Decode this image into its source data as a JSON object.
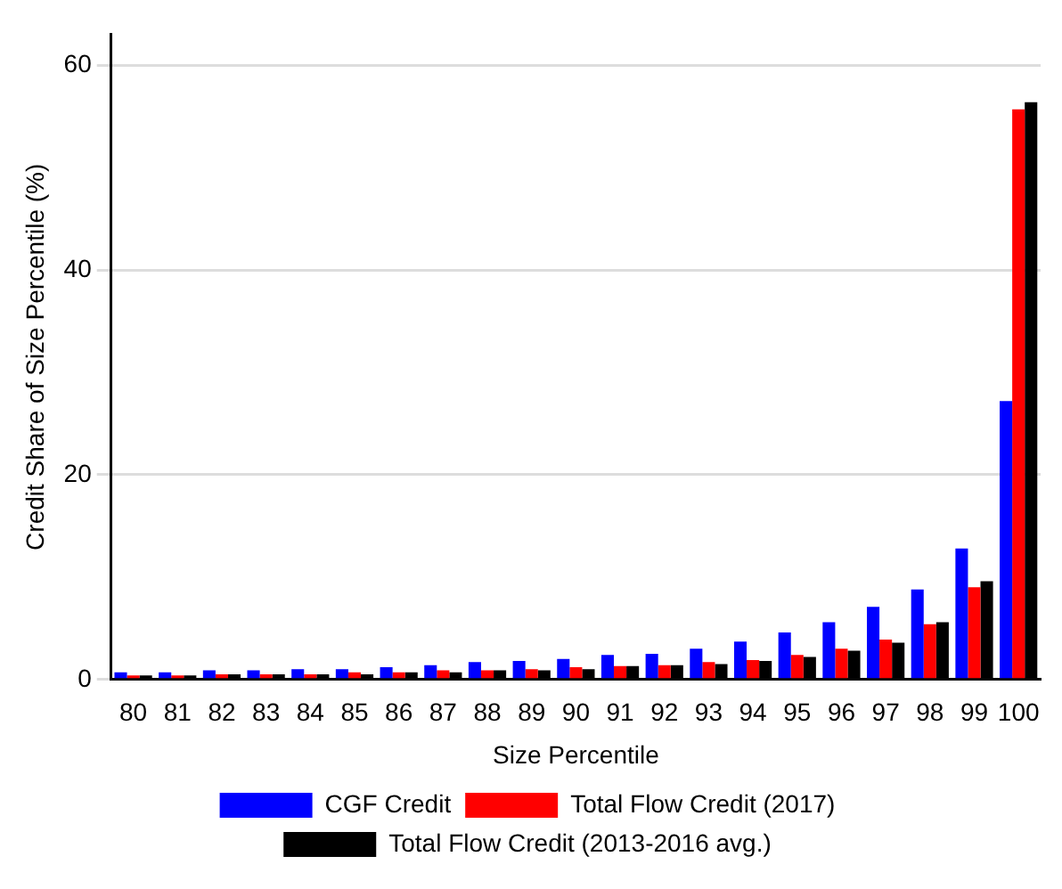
{
  "chart_data": {
    "type": "bar",
    "xlabel": "Size Percentile",
    "ylabel": "Credit Share of Size Percentile (%)",
    "categories": [
      "80",
      "81",
      "82",
      "83",
      "84",
      "85",
      "86",
      "87",
      "88",
      "89",
      "90",
      "91",
      "92",
      "93",
      "94",
      "95",
      "96",
      "97",
      "98",
      "99",
      "100"
    ],
    "series": [
      {
        "name": "CGF Credit",
        "color": "#0000ff",
        "values": [
          0.7,
          0.7,
          0.9,
          0.9,
          1.0,
          1.0,
          1.2,
          1.4,
          1.7,
          1.8,
          2.0,
          2.4,
          2.5,
          3.0,
          3.7,
          4.6,
          5.6,
          7.1,
          8.8,
          12.8,
          27.2
        ]
      },
      {
        "name": "Total Flow Credit (2017)",
        "color": "#ff0000",
        "values": [
          0.4,
          0.4,
          0.5,
          0.5,
          0.5,
          0.7,
          0.7,
          0.9,
          0.9,
          1.0,
          1.2,
          1.3,
          1.4,
          1.7,
          1.9,
          2.4,
          3.0,
          3.9,
          5.4,
          9.0,
          55.7
        ]
      },
      {
        "name": "Total Flow Credit (2013-2016 avg.)",
        "color": "#000000",
        "values": [
          0.4,
          0.4,
          0.5,
          0.5,
          0.5,
          0.5,
          0.7,
          0.7,
          0.9,
          0.9,
          1.0,
          1.3,
          1.4,
          1.5,
          1.8,
          2.2,
          2.8,
          3.6,
          5.6,
          9.6,
          56.4
        ]
      }
    ],
    "ylim": [
      0,
      63
    ],
    "yticks": [
      0,
      20,
      40,
      60
    ],
    "grid": "y",
    "legend": "bottom"
  }
}
